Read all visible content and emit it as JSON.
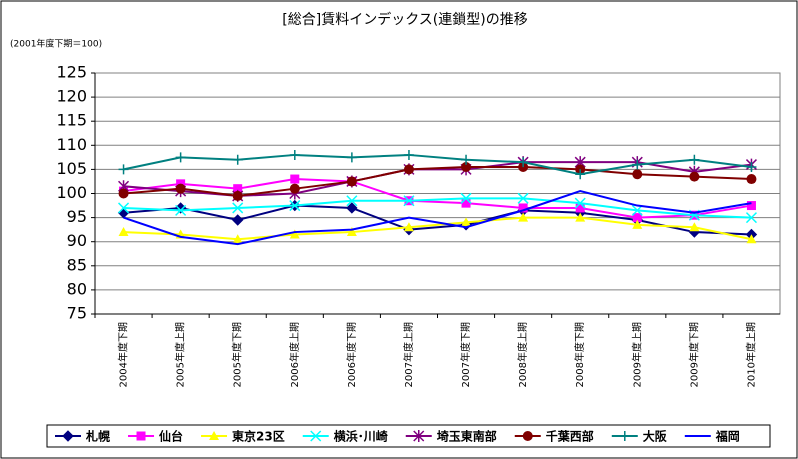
{
  "chart_data": {
    "type": "line",
    "title": "[総合]賃料インデックス(連鎖型)の推移",
    "subtitle": "(2001年度下期＝100)",
    "categories": [
      "2004年度下期",
      "2005年度上期",
      "2005年度下期",
      "2006年度上期",
      "2006年度下期",
      "2007年度上期",
      "2007年度下期",
      "2008年度上期",
      "2008年度下期",
      "2009年度上期",
      "2009年度下期",
      "2010年度上期"
    ],
    "ylim": [
      75,
      125
    ],
    "yticks": [
      75,
      80,
      85,
      90,
      95,
      100,
      105,
      110,
      115,
      120,
      125
    ],
    "grid": true,
    "legend": "bottom",
    "series": [
      {
        "name": "札幌",
        "color": "#000080",
        "marker": "diamond",
        "values": [
          96,
          97,
          94.5,
          97.5,
          97,
          92.5,
          93.5,
          96.5,
          96,
          94.5,
          92,
          91.5
        ]
      },
      {
        "name": "仙台",
        "color": "#ff00ff",
        "marker": "square",
        "values": [
          100.5,
          102,
          101,
          103,
          102.5,
          98.5,
          98,
          97,
          97,
          95,
          95.5,
          97.5
        ]
      },
      {
        "name": "東京23区",
        "color": "#ffff00",
        "marker": "triangle",
        "values": [
          92,
          91.5,
          90.5,
          91.5,
          92,
          93,
          94,
          95,
          95,
          93.5,
          93,
          90.5
        ]
      },
      {
        "name": "横浜･川崎",
        "color": "#00ffff",
        "marker": "x",
        "values": [
          97,
          96.5,
          97,
          97.5,
          98.5,
          98.5,
          99,
          99,
          98,
          96.5,
          95.5,
          95
        ]
      },
      {
        "name": "埼玉東南部",
        "color": "#800080",
        "marker": "asterisk",
        "values": [
          101.5,
          100.5,
          99.5,
          100,
          102.5,
          105,
          105,
          106.5,
          106.5,
          106.5,
          104.5,
          106
        ]
      },
      {
        "name": "千葉西部",
        "color": "#800000",
        "marker": "circle",
        "values": [
          100,
          101,
          99.5,
          101,
          102.5,
          105,
          105.5,
          105.5,
          105,
          104,
          103.5,
          103
        ]
      },
      {
        "name": "大阪",
        "color": "#008080",
        "marker": "plus",
        "values": [
          105,
          107.5,
          107,
          108,
          107.5,
          108,
          107,
          106.5,
          104,
          106,
          107,
          105.5
        ]
      },
      {
        "name": "福岡",
        "color": "#0000ff",
        "marker": "none",
        "values": [
          95,
          91,
          89.5,
          92,
          92.5,
          95,
          93,
          96.5,
          100.5,
          97.5,
          96,
          98
        ]
      }
    ]
  }
}
